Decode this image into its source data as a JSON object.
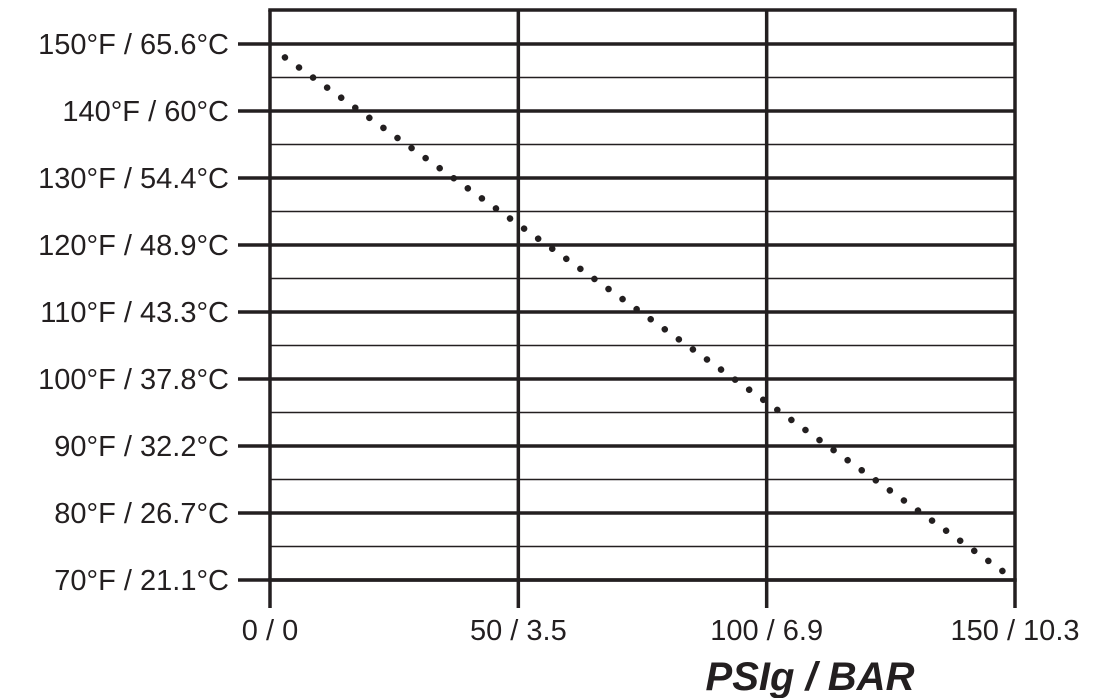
{
  "chart_data": {
    "type": "line",
    "title": "",
    "xlabel": "PSIg / BAR",
    "ylabel": "",
    "x_ticks": [
      {
        "value": 0,
        "label": "0 / 0"
      },
      {
        "value": 50,
        "label": "50 / 3.5"
      },
      {
        "value": 100,
        "label": "100 / 6.9"
      },
      {
        "value": 150,
        "label": "150 / 10.3"
      }
    ],
    "y_ticks": [
      {
        "value": 150,
        "label": "150°F / 65.6°C"
      },
      {
        "value": 140,
        "label": "140°F / 60°C"
      },
      {
        "value": 130,
        "label": "130°F / 54.4°C"
      },
      {
        "value": 120,
        "label": "120°F / 48.9°C"
      },
      {
        "value": 110,
        "label": "110°F / 43.3°C"
      },
      {
        "value": 100,
        "label": "100°F / 37.8°C"
      },
      {
        "value": 90,
        "label": "90°F / 32.2°C"
      },
      {
        "value": 80,
        "label": "80°F / 26.7°C"
      },
      {
        "value": 70,
        "label": "70°F / 21.1°C"
      }
    ],
    "xlim": [
      0,
      150
    ],
    "ylim": [
      70,
      155
    ],
    "grid": true,
    "series": [
      {
        "x": [
          3,
          150
        ],
        "y": [
          148,
          70
        ],
        "style": "dotted",
        "color": "#231f20"
      }
    ]
  }
}
